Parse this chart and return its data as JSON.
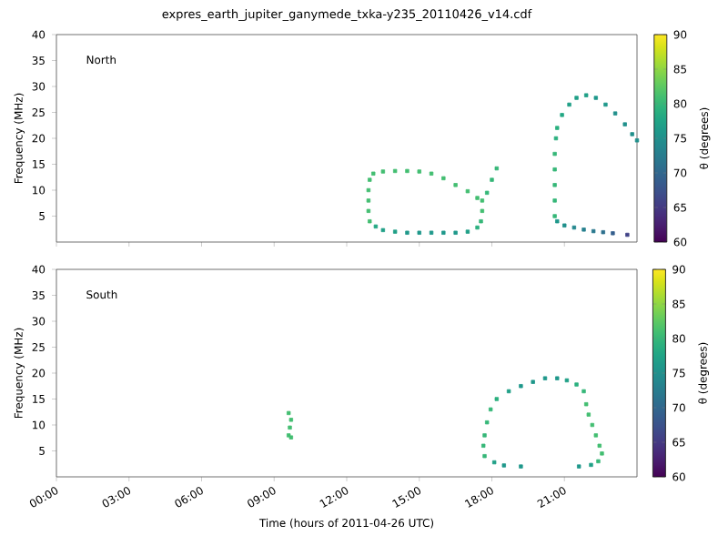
{
  "chart_data": [
    {
      "type": "scatter",
      "title": "expres_earth_jupiter_ganymede_txka-y235_20110426_v14.cdf",
      "ylabel": "Frequency (MHz)",
      "clabel": "θ (degrees)",
      "annotations": [
        "North"
      ],
      "x": [
        12.95,
        12.9,
        12.9,
        12.9,
        12.95,
        13.1,
        13.5,
        14.0,
        14.5,
        15.0,
        15.5,
        16.0,
        16.5,
        17.0,
        17.4,
        17.6,
        17.8,
        18.0,
        18.2,
        17.6,
        17.55,
        17.4,
        17.0,
        16.5,
        16.0,
        15.5,
        15.0,
        14.5,
        14.0,
        13.5,
        13.2,
        20.6,
        20.6,
        20.6,
        20.6,
        20.6,
        20.65,
        20.7,
        20.9,
        21.2,
        21.5,
        21.9,
        22.3,
        22.7,
        23.1,
        23.5,
        23.8,
        24.0,
        20.7,
        21.0,
        21.4,
        21.8,
        22.2,
        22.6,
        23.0,
        23.6
      ],
      "values": [
        4,
        6,
        8,
        10,
        12,
        13.2,
        13.6,
        13.7,
        13.7,
        13.6,
        13.2,
        12.3,
        11,
        9.8,
        8.5,
        8.0,
        9.5,
        12,
        14.2,
        6,
        4,
        2.8,
        2.0,
        1.8,
        1.8,
        1.8,
        1.8,
        1.8,
        2.0,
        2.3,
        3,
        5,
        8,
        11,
        14,
        17,
        20,
        22,
        24.5,
        26.5,
        27.8,
        28.3,
        27.8,
        26.5,
        24.8,
        22.7,
        20.8,
        19.6,
        4,
        3.2,
        2.8,
        2.4,
        2.1,
        1.9,
        1.7,
        1.4
      ],
      "cvalues": [
        81,
        81,
        81,
        81,
        81,
        81,
        81,
        81,
        81,
        81,
        81,
        81,
        81,
        81,
        81,
        81,
        80,
        80,
        80,
        81,
        80,
        79,
        77,
        76,
        76,
        76,
        76,
        76,
        77,
        77,
        78,
        80,
        80,
        80,
        80,
        80,
        79,
        79,
        78,
        77,
        77,
        77,
        76,
        76,
        75,
        75,
        75,
        75,
        76,
        75,
        74,
        73,
        72,
        71,
        69,
        66
      ],
      "xlim": [
        0,
        24
      ],
      "ylim": [
        0,
        40
      ],
      "xticks": [
        {
          "value": 0,
          "label": null
        },
        {
          "value": 3,
          "label": null
        },
        {
          "value": 6,
          "label": null
        },
        {
          "value": 9,
          "label": null
        },
        {
          "value": 12,
          "label": null
        },
        {
          "value": 15,
          "label": null
        },
        {
          "value": 18,
          "label": null
        },
        {
          "value": 21,
          "label": null
        }
      ],
      "yticks": [
        5,
        10,
        15,
        20,
        25,
        30,
        35,
        40
      ],
      "clim": [
        60,
        90
      ],
      "cticks": [
        60,
        65,
        70,
        75,
        80,
        85,
        90
      ],
      "marker": "square",
      "tick_labels": "y"
    },
    {
      "type": "scatter",
      "xlabel": "Time (hours of 2011-04-26 UTC)",
      "ylabel": "Frequency (MHz)",
      "clabel": "θ (degrees)",
      "annotations": [
        "South"
      ],
      "x": [
        9.6,
        9.65,
        9.7,
        9.6,
        9.7,
        17.7,
        17.65,
        17.7,
        17.8,
        17.95,
        18.2,
        18.7,
        19.2,
        19.7,
        20.2,
        20.7,
        21.1,
        21.5,
        21.8,
        21.9,
        22.0,
        22.15,
        22.3,
        22.45,
        22.55,
        22.4,
        22.1,
        21.6,
        18.1,
        18.5,
        19.2
      ],
      "values": [
        8,
        9.5,
        11,
        12.3,
        7.6,
        4,
        6,
        8,
        10.5,
        13,
        15,
        16.5,
        17.5,
        18.3,
        19,
        19,
        18.6,
        17.8,
        16.5,
        14,
        12,
        10,
        8,
        6,
        4.5,
        3,
        2.3,
        2,
        2.8,
        2.2,
        2.0
      ],
      "cvalues": [
        81,
        81,
        81,
        81,
        81,
        80,
        80,
        80,
        80,
        80,
        79,
        77,
        76,
        76,
        76,
        76,
        77,
        79,
        80,
        81,
        81,
        81,
        81,
        81,
        81,
        80,
        77,
        76,
        77,
        76,
        76
      ],
      "xlim": [
        0,
        24
      ],
      "ylim": [
        0,
        40
      ],
      "xticks": [
        {
          "value": 0,
          "label": "00:00"
        },
        {
          "value": 3,
          "label": "03:00"
        },
        {
          "value": 6,
          "label": "06:00"
        },
        {
          "value": 9,
          "label": "09:00"
        },
        {
          "value": 12,
          "label": "12:00"
        },
        {
          "value": 15,
          "label": "15:00"
        },
        {
          "value": 18,
          "label": "18:00"
        },
        {
          "value": 21,
          "label": "21:00"
        }
      ],
      "yticks": [
        5,
        10,
        15,
        20,
        25,
        30,
        35,
        40
      ],
      "clim": [
        60,
        90
      ],
      "cticks": [
        60,
        65,
        70,
        75,
        80,
        85,
        90
      ],
      "marker": "square"
    }
  ]
}
